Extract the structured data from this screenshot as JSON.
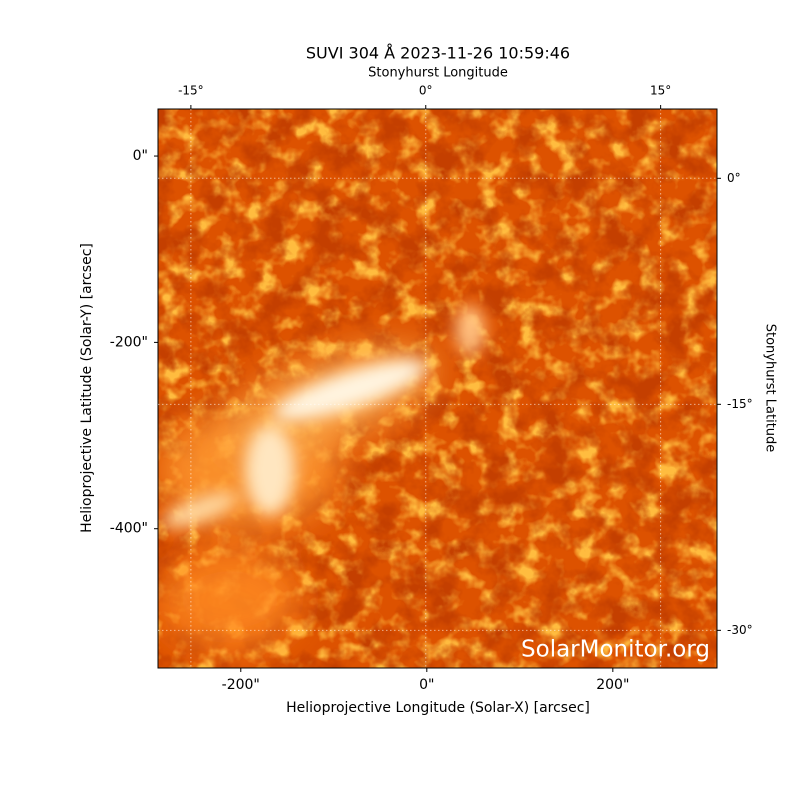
{
  "chart_data": {
    "type": "image",
    "title": "SUVI 304 Å 2023-11-26 10:59:46",
    "xlabel": "Helioprojective Longitude (Solar-X) [arcsec]",
    "ylabel": "Helioprojective Latitude (Solar-Y) [arcsec]",
    "x2label": "Stonyhurst Longitude",
    "y2label": "Stonyhurst Latitude",
    "watermark": "SolarMonitor.org",
    "xlim": [
      -289,
      312
    ],
    "ylim": [
      -549.5,
      50.5
    ],
    "xticks": [
      {
        "value": -200,
        "label": "-200\""
      },
      {
        "value": 0,
        "label": "0\""
      },
      {
        "value": 200,
        "label": "200\""
      }
    ],
    "yticks": [
      {
        "value": 0,
        "label": "0\""
      },
      {
        "value": -200,
        "label": "-200\""
      },
      {
        "value": -400,
        "label": "-400\""
      }
    ],
    "x2lim": [
      -17.1,
      18.6
    ],
    "x2ticks": [
      {
        "value": -15,
        "label": "-15°"
      },
      {
        "value": 0,
        "label": "0°"
      },
      {
        "value": 15,
        "label": "15°"
      }
    ],
    "y2lim": [
      -32.5,
      4.6
    ],
    "y2ticks": [
      {
        "value": 0,
        "label": "0°"
      },
      {
        "value": -15,
        "label": "-15°"
      },
      {
        "value": -30,
        "label": "-30°"
      }
    ],
    "grid": true
  }
}
